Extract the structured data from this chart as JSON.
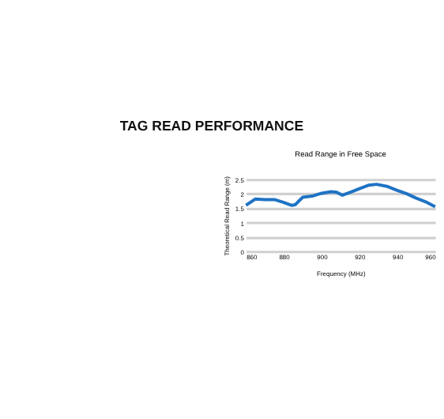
{
  "chart_data": {
    "type": "line",
    "title": "TAG READ PERFORMANCE",
    "subtitle": "Read Range in Free Space",
    "xlabel": "Frequency (MHz)",
    "ylabel": "Theoretical Read Range (m)",
    "x": [
      860,
      865,
      870,
      875,
      880,
      884,
      886,
      890,
      895,
      900,
      905,
      908,
      911,
      915,
      920,
      925,
      929,
      935,
      940,
      945,
      950,
      955,
      960
    ],
    "series": [
      {
        "color": "#1f73c4",
        "values": [
          1.6,
          1.82,
          1.8,
          1.8,
          1.7,
          1.6,
          1.62,
          1.88,
          1.92,
          2.02,
          2.07,
          2.05,
          1.95,
          2.05,
          2.18,
          2.3,
          2.33,
          2.25,
          2.12,
          2.0,
          1.85,
          1.72,
          1.55
        ]
      }
    ],
    "xlim": [
      860,
      960
    ],
    "xticks": [
      860,
      880,
      900,
      920,
      940,
      960
    ],
    "ylim": [
      0,
      2.5
    ],
    "yticks": [
      0,
      0.5,
      1,
      1.5,
      2,
      2.5
    ],
    "grid": "y",
    "marker": "none",
    "line_style": "solid"
  }
}
